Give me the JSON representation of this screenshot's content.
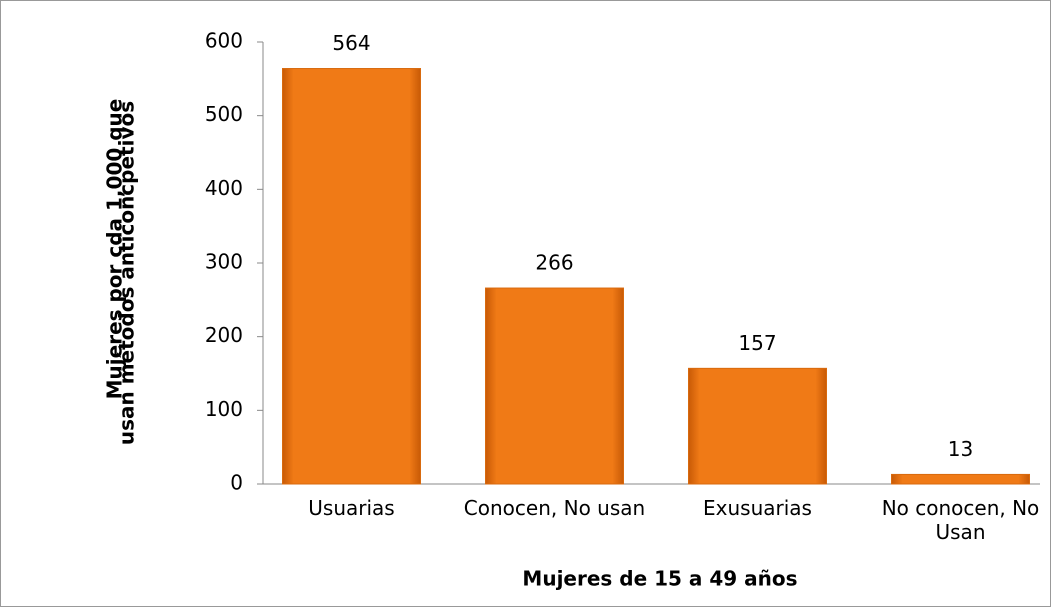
{
  "chart_data": {
    "type": "bar",
    "categories": [
      "Usuarias",
      "Conocen, No usan",
      "Exusuarias",
      "No conocen, No Usan"
    ],
    "values": [
      564,
      266,
      157,
      13
    ],
    "color": "#f07a16",
    "ylim": [
      0,
      600
    ],
    "yticks": [
      0,
      100,
      200,
      300,
      400,
      500,
      600
    ],
    "y_label": [
      "Mujeres por cda 1,000 que",
      "usan métodos anticoncpetivos"
    ],
    "x_label": "Mujeres de 15 a 49 años"
  }
}
